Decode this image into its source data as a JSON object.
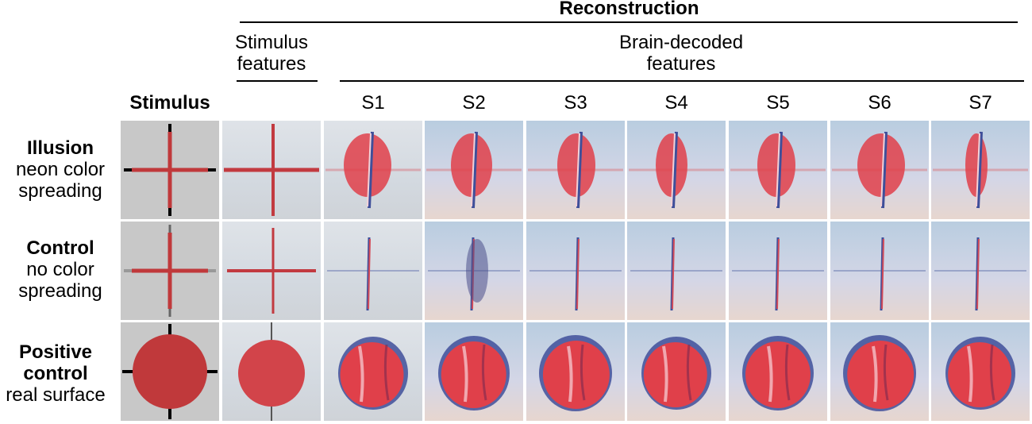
{
  "header": {
    "reconstruction": "Reconstruction",
    "stimulus_features": [
      "Stimulus",
      "features"
    ],
    "brain_decoded": [
      "Brain-decoded",
      "features"
    ],
    "stimulus": "Stimulus",
    "subjects": [
      "S1",
      "S2",
      "S3",
      "S4",
      "S5",
      "S6",
      "S7"
    ]
  },
  "rows": [
    {
      "bold": "Illusion",
      "lines": [
        "neon color",
        "spreading"
      ],
      "kind": "illusion"
    },
    {
      "bold": "Control",
      "lines": [
        "no color",
        "spreading"
      ],
      "kind": "control"
    },
    {
      "bold": "Positive",
      "bold2": "control",
      "lines": [
        "real surface"
      ],
      "kind": "positive"
    }
  ],
  "colors": {
    "stimulus_bg": "#c8c8c8",
    "red": "#c0393b",
    "recon_bg": "#c9d6e3",
    "blob_red": "#e0404a",
    "blob_blue": "#3f4f9a"
  }
}
